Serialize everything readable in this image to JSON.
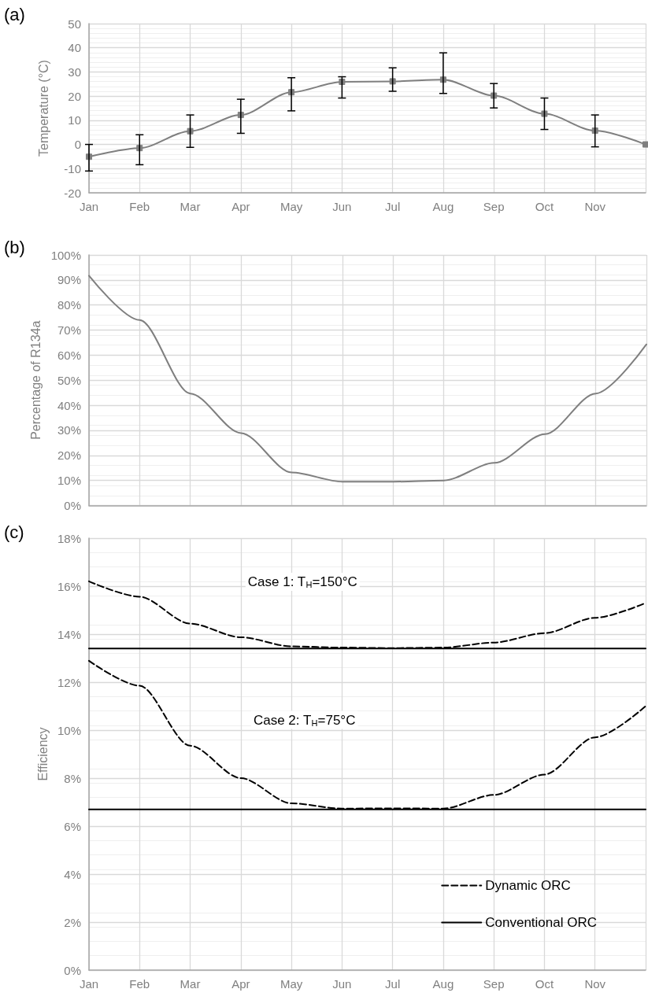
{
  "chart_data": [
    {
      "type": "line",
      "title": "(a)",
      "ylabel": "Temperature (°C)",
      "categories": [
        "Jan",
        "Feb",
        "Mar",
        "Apr",
        "May",
        "Jun",
        "Jul",
        "Aug",
        "Sep",
        "Oct",
        "Nov",
        null
      ],
      "ylim": [
        -20,
        50
      ],
      "yticks": [
        -20,
        -10,
        0,
        10,
        20,
        30,
        40,
        50
      ],
      "grid": true,
      "marker": "square",
      "series": [
        {
          "color": "#7f7f7f",
          "values": [
            -5.1,
            -1.5,
            5.5,
            12.2,
            21.6,
            25.9,
            26.1,
            26.8,
            20.2,
            12.7,
            5.7,
            0
          ],
          "errors": [
            [
              -11,
              0
            ],
            [
              -8.4,
              4
            ],
            [
              -1.2,
              12.2
            ],
            [
              4.6,
              18.7
            ],
            [
              13.9,
              27.6
            ],
            [
              19.2,
              28
            ],
            [
              22,
              31.7
            ],
            [
              21.1,
              37.9
            ],
            [
              15.1,
              25.2
            ],
            [
              6.2,
              19.2
            ],
            [
              -1,
              12.2
            ],
            null
          ]
        }
      ]
    },
    {
      "type": "line",
      "title": "(b)",
      "ylabel": "Percentage of R134a",
      "categories": [
        null,
        null,
        null,
        null,
        null,
        null,
        null,
        null,
        null,
        null,
        null,
        null
      ],
      "ylim": [
        0,
        100
      ],
      "yticks": [
        {
          "value": 0,
          "label": "0%"
        },
        {
          "value": 10,
          "label": "10%"
        },
        {
          "value": 20,
          "label": "20%"
        },
        {
          "value": 30,
          "label": "30%"
        },
        {
          "value": 40,
          "label": "40%"
        },
        {
          "value": 50,
          "label": "50%"
        },
        {
          "value": 60,
          "label": "60%"
        },
        {
          "value": 70,
          "label": "70%"
        },
        {
          "value": 80,
          "label": "80%"
        },
        {
          "value": 90,
          "label": "90%"
        },
        {
          "value": 100,
          "label": "100%"
        }
      ],
      "grid": true,
      "marker": "none",
      "tick_labels": "y",
      "series": [
        {
          "color": "#7f7f7f",
          "values": [
            91.7,
            74,
            44.7,
            28.9,
            13.2,
            9.5,
            9.5,
            10,
            17,
            28.5,
            44.7,
            64.3
          ]
        }
      ]
    },
    {
      "type": "line",
      "title": "(c)",
      "ylabel": "Efficiency",
      "categories": [
        "Jan",
        "Feb",
        "Mar",
        "Apr",
        "May",
        "Jun",
        "Jul",
        "Aug",
        "Sep",
        "Oct",
        "Nov",
        null
      ],
      "ylim": [
        0,
        18
      ],
      "yticks": [
        {
          "value": 0,
          "label": "0%"
        },
        {
          "value": 2,
          "label": "2%"
        },
        {
          "value": 4,
          "label": "4%"
        },
        {
          "value": 6,
          "label": "6%"
        },
        {
          "value": 8,
          "label": "8%"
        },
        {
          "value": 10,
          "label": "10%"
        },
        {
          "value": 12,
          "label": "12%"
        },
        {
          "value": 14,
          "label": "14%"
        },
        {
          "value": 16,
          "label": "16%"
        },
        {
          "value": 18,
          "label": "18%"
        }
      ],
      "grid": true,
      "marker": "none",
      "legend": "bottom right",
      "annotations": [
        "Case 1: T$_{H}$=150°C",
        "Case 2: T$_{H}$=75°C"
      ],
      "series": [
        {
          "name": "Dynamic ORC",
          "color": "#000000",
          "line_style": "dashed",
          "values": [
            16.2,
            15.56,
            14.44,
            13.87,
            13.49,
            13.44,
            13.42,
            13.44,
            13.65,
            14.04,
            14.68,
            15.3
          ]
        },
        {
          "name": "Conventional ORC",
          "color": "#000000",
          "line_style": "solid",
          "values": [
            13.4,
            13.4,
            13.4,
            13.4,
            13.4,
            13.4,
            13.4,
            13.4,
            13.4,
            13.4,
            13.4,
            13.4
          ]
        },
        {
          "color": "#000000",
          "line_style": "dashed",
          "values": [
            12.89,
            11.85,
            9.35,
            8,
            6.95,
            6.73,
            6.74,
            6.73,
            7.3,
            8.15,
            9.7,
            11
          ]
        },
        {
          "color": "#000000",
          "line_style": "solid",
          "values": [
            6.7,
            6.7,
            6.7,
            6.7,
            6.7,
            6.7,
            6.7,
            6.7,
            6.7,
            6.7,
            6.7,
            6.7
          ]
        }
      ]
    }
  ]
}
